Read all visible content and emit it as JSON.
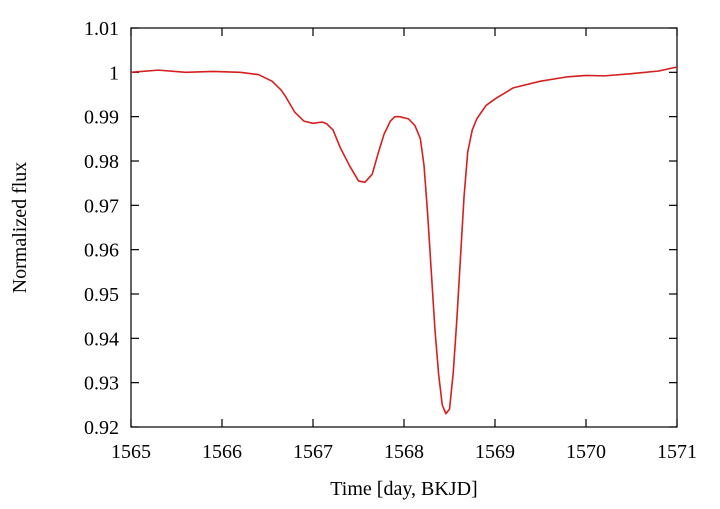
{
  "chart_data": {
    "type": "line",
    "title": "",
    "xlabel": "Time [day, BKJD]",
    "ylabel": "Normalized flux",
    "xlim": [
      1565,
      1571
    ],
    "ylim": [
      0.92,
      1.01
    ],
    "xticks": [
      1565,
      1566,
      1567,
      1568,
      1569,
      1570,
      1571
    ],
    "yticks": [
      0.92,
      0.93,
      0.94,
      0.95,
      0.96,
      0.97,
      0.98,
      0.99,
      1,
      1.01
    ],
    "xtick_labels": [
      "1565",
      "1566",
      "1567",
      "1568",
      "1569",
      "1570",
      "1571"
    ],
    "ytick_labels": [
      "0.92",
      "0.93",
      "0.94",
      "0.95",
      "0.96",
      "0.97",
      "0.98",
      "0.99",
      "1",
      "1.01"
    ],
    "grid": false,
    "colors": {
      "line": "#d42020",
      "axes": "#000000"
    },
    "series": [
      {
        "x": [
          1565.0,
          1565.3,
          1565.6,
          1565.9,
          1566.2,
          1566.4,
          1566.55,
          1566.65,
          1566.7,
          1566.8,
          1566.9,
          1567.0,
          1567.1,
          1567.15,
          1567.22,
          1567.3,
          1567.4,
          1567.5,
          1567.57,
          1567.65,
          1567.72,
          1567.78,
          1567.85,
          1567.9,
          1567.95,
          1568.05,
          1568.12,
          1568.18,
          1568.22,
          1568.26,
          1568.3,
          1568.34,
          1568.38,
          1568.42,
          1568.46,
          1568.5,
          1568.54,
          1568.58,
          1568.62,
          1568.66,
          1568.7,
          1568.75,
          1568.8,
          1568.9,
          1569.0,
          1569.2,
          1569.5,
          1569.8,
          1570.0,
          1570.2,
          1570.5,
          1570.8,
          1571.0
        ],
        "y": [
          1.0,
          1.0005,
          1.0,
          1.0002,
          1.0,
          0.9995,
          0.998,
          0.996,
          0.9945,
          0.991,
          0.989,
          0.9885,
          0.9888,
          0.9884,
          0.987,
          0.983,
          0.979,
          0.9755,
          0.9752,
          0.977,
          0.982,
          0.986,
          0.989,
          0.99,
          0.99,
          0.9895,
          0.988,
          0.985,
          0.979,
          0.968,
          0.955,
          0.942,
          0.932,
          0.925,
          0.923,
          0.924,
          0.932,
          0.944,
          0.958,
          0.972,
          0.982,
          0.987,
          0.9895,
          0.9925,
          0.994,
          0.9965,
          0.998,
          0.999,
          0.9993,
          0.9992,
          0.9997,
          1.0003,
          1.0012
        ]
      }
    ]
  }
}
